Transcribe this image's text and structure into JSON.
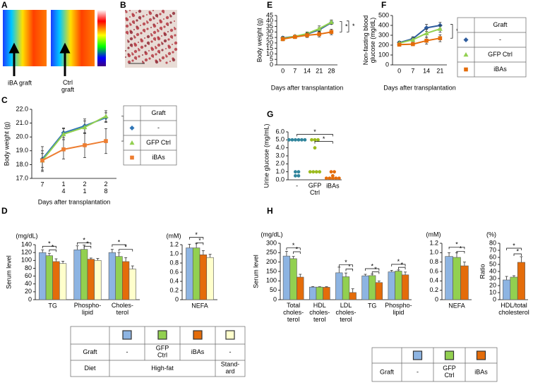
{
  "figure": {
    "panel_labels": [
      "A",
      "B",
      "C",
      "D",
      "E",
      "F",
      "G",
      "H"
    ],
    "image_labels": [
      "iBA graft",
      "Ctrl\ngraft"
    ]
  },
  "chart_data": [
    {
      "type": "line",
      "y_label": "Body weight (g)",
      "x_label": "Days after transplantation",
      "categories": [
        "7",
        "1\n4",
        "2\n1",
        "2\n8"
      ],
      "ylim": [
        17,
        22
      ],
      "yticks": [
        {
          "value": 17,
          "label": "17.0"
        },
        {
          "value": 18,
          "label": "18.0"
        },
        {
          "value": 19,
          "label": "19.0"
        },
        {
          "value": 20,
          "label": "20.0"
        },
        {
          "value": 21,
          "label": "21.0"
        },
        {
          "value": 22,
          "label": "22.0"
        }
      ],
      "legend_title": "Graft",
      "series": [
        {
          "name": "-",
          "color": "#2e75b6",
          "marker": "diamond",
          "values": [
            18.4,
            20.3,
            20.8,
            21.4
          ],
          "errors": [
            0.9,
            0.35,
            0.5,
            0.35
          ]
        },
        {
          "name": "GFP Ctrl",
          "color": "#92d050",
          "marker": "triangle",
          "values": [
            18.3,
            20.2,
            20.7,
            21.5
          ],
          "errors": [
            0.7,
            0.4,
            0.45,
            0.4
          ]
        },
        {
          "name": "iBAs",
          "color": "#ed7d31",
          "marker": "square",
          "values": [
            18.3,
            19.1,
            19.4,
            19.7
          ],
          "errors": [
            0.5,
            0.7,
            0.9,
            0.9
          ]
        }
      ],
      "annotations": [
        "*"
      ]
    },
    {
      "type": "bar",
      "unit": "(mg/dL)",
      "y_label": "Serum level",
      "categories": [
        "TG",
        "Phospho-\nlipid",
        "Choles-\nterol"
      ],
      "ylim": [
        0,
        140
      ],
      "yticks": [
        0,
        20,
        40,
        60,
        80,
        100,
        120,
        140
      ],
      "series": [
        {
          "color": "#8db4e2",
          "values": [
            120,
            127,
            120
          ],
          "errors": [
            7,
            10,
            8
          ]
        },
        {
          "color": "#92d050",
          "values": [
            112,
            128,
            110
          ],
          "errors": [
            6,
            11,
            10
          ]
        },
        {
          "color": "#e46c0a",
          "values": [
            97,
            103,
            97
          ],
          "errors": [
            7,
            3,
            10
          ]
        },
        {
          "color": "#ffffcc",
          "values": [
            92,
            100,
            78
          ],
          "errors": [
            6,
            5,
            8
          ]
        }
      ],
      "annotations": [
        "*",
        "*",
        "*",
        "*",
        "*",
        "*"
      ]
    },
    {
      "type": "bar",
      "unit": "(mM)",
      "categories": [
        "NEFA"
      ],
      "ylim": [
        0,
        1.2
      ],
      "yticks": [
        0,
        0.2,
        0.4,
        0.6,
        0.8,
        {
          "value": 1,
          "label": "1.0"
        },
        1.2
      ],
      "series": [
        {
          "color": "#8db4e2",
          "values": [
            1.13
          ],
          "errors": [
            0.08
          ]
        },
        {
          "color": "#92d050",
          "values": [
            1.13
          ],
          "errors": [
            0.1
          ]
        },
        {
          "color": "#e46c0a",
          "values": [
            0.98
          ],
          "errors": [
            0.09
          ]
        },
        {
          "color": "#ffffcc",
          "values": [
            0.92
          ],
          "errors": [
            0.07
          ]
        }
      ],
      "annotations": [
        "*",
        "*"
      ]
    },
    {
      "type": "line",
      "y_label": "Body weight (g)",
      "x_label": "Days after transplantation",
      "categories": [
        "0",
        "7",
        "14",
        "21",
        "28"
      ],
      "ylim": [
        0,
        45
      ],
      "yticks": [
        0,
        5,
        10,
        15,
        20,
        25,
        30,
        35,
        40,
        45
      ],
      "series": [
        {
          "color": "#2e5c9e",
          "marker": "diamond",
          "values": [
            24.5,
            26,
            28,
            32,
            38.5
          ],
          "errors": [
            1.5,
            1,
            1.5,
            2,
            1.5
          ]
        },
        {
          "color": "#92d050",
          "marker": "triangle",
          "values": [
            24,
            26,
            28.5,
            33,
            39
          ],
          "errors": [
            1.5,
            1,
            1.5,
            2.5,
            2
          ]
        },
        {
          "color": "#e46c0a",
          "marker": "square",
          "values": [
            23.5,
            25.5,
            27,
            28,
            30
          ],
          "errors": [
            1.5,
            1.5,
            2,
            2.5,
            2.5
          ]
        }
      ],
      "annotations": [
        "*",
        "*"
      ]
    },
    {
      "type": "line",
      "y_label": "Non-fasting blood\nglucose (mg/dL)",
      "x_label": "Days after transplantation",
      "categories": [
        "0",
        "7",
        "14",
        "21"
      ],
      "ylim": [
        0,
        500
      ],
      "yticks": [
        0,
        100,
        200,
        300,
        400,
        500
      ],
      "legend_title": "Graft",
      "series": [
        {
          "name": "-",
          "color": "#2e5c9e",
          "marker": "diamond",
          "values": [
            225,
            265,
            375,
            400
          ],
          "errors": [
            15,
            20,
            35,
            30
          ]
        },
        {
          "name": "GFP Ctrl",
          "color": "#92d050",
          "marker": "triangle",
          "values": [
            220,
            255,
            320,
            365
          ],
          "errors": [
            15,
            20,
            40,
            35
          ]
        },
        {
          "name": "iBAs",
          "color": "#e46c0a",
          "marker": "square",
          "values": [
            205,
            210,
            245,
            270
          ],
          "errors": [
            10,
            15,
            35,
            35
          ]
        }
      ],
      "annotations": [
        "*",
        "*"
      ]
    },
    {
      "type": "strip",
      "y_label": "Urine glucose (mg/mL)",
      "categories": [
        "-",
        "GFP\nCtrl",
        "iBAs"
      ],
      "ylim": [
        0,
        6
      ],
      "yticks": [
        {
          "value": 0,
          "label": "0.0"
        },
        {
          "value": 1,
          "label": "1.0"
        },
        {
          "value": 2,
          "label": "2.0"
        },
        {
          "value": 3,
          "label": "3.0"
        },
        {
          "value": 4,
          "label": "4.0"
        },
        {
          "value": 5,
          "label": "5.0"
        },
        {
          "value": 6,
          "label": "6.0"
        }
      ],
      "series": [
        {
          "color": "#31859c",
          "values": [
            5,
            5,
            5,
            5,
            5,
            5,
            1,
            1,
            0.5,
            0.5
          ]
        },
        {
          "color": "#9bbb1e",
          "values": [
            5,
            5,
            5,
            4,
            1,
            1,
            1,
            1
          ]
        },
        {
          "color": "#e46c0a",
          "values": [
            1,
            1,
            0.5,
            0.2,
            0.2,
            0.2,
            0.2,
            0.2
          ]
        }
      ],
      "annotations": [
        "*",
        "*"
      ]
    },
    {
      "type": "bar",
      "unit": "(mg/dL)",
      "y_label": "Serum level",
      "categories": [
        "Total\ncholes-\nterol",
        "HDL\ncholes-\nterol",
        "LDL\ncholes-\nterol",
        "TG",
        "Phospho-\nlipid"
      ],
      "ylim": [
        0,
        300
      ],
      "yticks": [
        0,
        50,
        100,
        150,
        200,
        250,
        300
      ],
      "series": [
        {
          "color": "#8db4e2",
          "values": [
            232,
            67,
            143,
            127,
            148
          ],
          "errors": [
            25,
            3,
            30,
            8,
            8
          ]
        },
        {
          "color": "#92d050",
          "values": [
            218,
            67,
            122,
            128,
            152
          ],
          "errors": [
            12,
            2,
            20,
            8,
            6
          ]
        },
        {
          "color": "#e46c0a",
          "values": [
            120,
            66,
            38,
            91,
            132
          ],
          "errors": [
            15,
            3,
            20,
            8,
            15
          ]
        }
      ],
      "annotations": [
        "*",
        "*",
        "*",
        "*",
        "*",
        "*",
        "*",
        "*"
      ]
    },
    {
      "type": "bar",
      "unit": "(mM)",
      "categories": [
        "NEFA"
      ],
      "ylim": [
        0,
        1.2
      ],
      "yticks": [
        0,
        0.2,
        0.4,
        0.6,
        0.8,
        {
          "value": 1,
          "label": "1.0"
        },
        1.2
      ],
      "series": [
        {
          "color": "#8db4e2",
          "values": [
            0.92
          ],
          "errors": [
            0.08
          ]
        },
        {
          "color": "#92d050",
          "values": [
            0.9
          ],
          "errors": [
            0.1
          ]
        },
        {
          "color": "#e46c0a",
          "values": [
            0.72
          ],
          "errors": [
            0.08
          ]
        }
      ],
      "annotations": [
        "*",
        "*"
      ]
    },
    {
      "type": "bar",
      "unit": "(%)",
      "y_label": "Ratio",
      "categories": [
        "HDL/total\ncholesterol"
      ],
      "ylim": [
        0,
        80
      ],
      "yticks": [
        0,
        10,
        20,
        30,
        40,
        50,
        60,
        70,
        80
      ],
      "series": [
        {
          "color": "#8db4e2",
          "values": [
            28
          ],
          "errors": [
            5
          ]
        },
        {
          "color": "#92d050",
          "values": [
            32
          ],
          "errors": [
            2
          ]
        },
        {
          "color": "#e46c0a",
          "values": [
            53
          ],
          "errors": [
            8
          ]
        }
      ],
      "annotations": [
        "*",
        "*"
      ]
    }
  ],
  "tables": [
    {
      "swatches": [
        "#8db4e2",
        "#92d050",
        "#e46c0a",
        "#ffffcc"
      ],
      "rows": [
        [
          "Graft",
          "-",
          "GFP\nCtrl",
          "iBAs",
          "-"
        ],
        [
          "Diet",
          "High-fat",
          "Stand-\nard"
        ]
      ]
    },
    {
      "swatches": [
        "#8db4e2",
        "#92d050",
        "#e46c0a"
      ],
      "rows": [
        [
          "Graft",
          "-",
          "GFP\nCtrl",
          "iBAs"
        ]
      ]
    }
  ]
}
